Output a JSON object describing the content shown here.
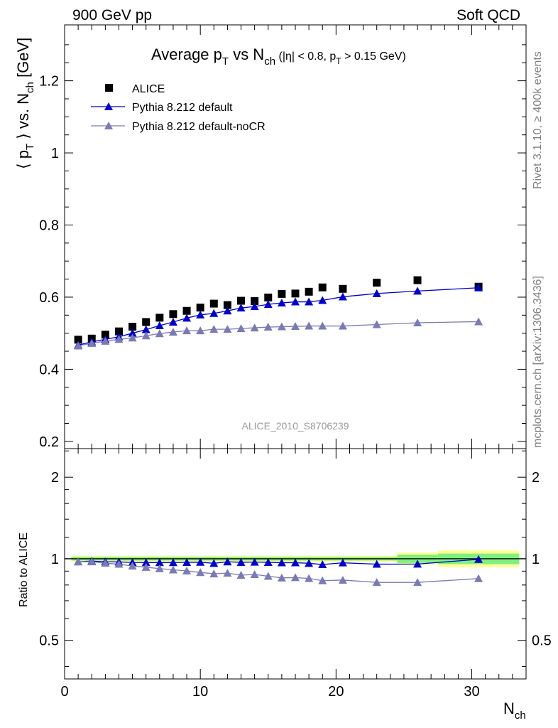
{
  "header": {
    "left": "900 GeV pp",
    "right": "Soft QCD"
  },
  "side_labels": {
    "rivet": "Rivet 3.1.10, ≥ 400k events",
    "mcplots": "mcplots.cern.ch [arXiv:1306.3436]"
  },
  "title": {
    "main_a": "Average p",
    "main_a_sub": "T",
    "main_b": " vs N",
    "main_b_sub": "ch",
    "small_a": " (|η| < 0.8, p",
    "small_sub": "T",
    "small_b": " > 0.15 GeV)"
  },
  "ylabel": {
    "part1": "⟨ p",
    "sub1": "T",
    "part2": " ⟩ vs. N",
    "sub2": "ch",
    "part3": " [GeV]"
  },
  "xlabel": {
    "main": "N",
    "sub": "ch"
  },
  "ratio_ylabel": "Ratio to ALICE",
  "analysis_id": "ALICE_2010_S8706239",
  "legend": [
    {
      "label": "ALICE",
      "color": "#000000",
      "marker": "square"
    },
    {
      "label": "Pythia 8.212 default",
      "color": "#0000cc",
      "marker": "triangle"
    },
    {
      "label": "Pythia 8.212 default-noCR",
      "color": "#7a7ab4",
      "marker": "triangle"
    }
  ],
  "chart_data": {
    "type": "scatter",
    "x": [
      1,
      2,
      3,
      4,
      5,
      6,
      7,
      8,
      9,
      10,
      11,
      12,
      13,
      14,
      15,
      16,
      17,
      18,
      19,
      20.5,
      23,
      26,
      30.5
    ],
    "xlim": [
      0,
      34
    ],
    "xticks": [
      0,
      10,
      20,
      30
    ],
    "ylim": [
      0.18,
      1.355
    ],
    "yticks": [
      0.2,
      0.4,
      0.6,
      0.8,
      1.0,
      1.2
    ],
    "ytick_labels": [
      "0.2",
      "0.4",
      "0.6",
      "0.8",
      "1",
      "1.2"
    ],
    "series": [
      {
        "name": "ALICE",
        "color": "#000000",
        "values": [
          0.482,
          0.485,
          0.496,
          0.505,
          0.518,
          0.531,
          0.543,
          0.553,
          0.562,
          0.571,
          0.582,
          0.578,
          0.59,
          0.589,
          0.599,
          0.609,
          0.61,
          0.615,
          0.627,
          0.623,
          0.64,
          0.647,
          0.629
        ]
      },
      {
        "name": "Pythia 8.212 default",
        "color": "#0000cc",
        "values": [
          0.467,
          0.476,
          0.483,
          0.49,
          0.5,
          0.51,
          0.521,
          0.531,
          0.542,
          0.551,
          0.555,
          0.562,
          0.57,
          0.574,
          0.58,
          0.584,
          0.587,
          0.587,
          0.591,
          0.601,
          0.61,
          0.617,
          0.626
        ]
      },
      {
        "name": "Pythia 8.212 default-noCR",
        "color": "#7a7ab4",
        "values": [
          0.465,
          0.472,
          0.478,
          0.483,
          0.487,
          0.493,
          0.499,
          0.503,
          0.507,
          0.507,
          0.511,
          0.511,
          0.513,
          0.515,
          0.517,
          0.518,
          0.519,
          0.52,
          0.52,
          0.52,
          0.524,
          0.529,
          0.532
        ]
      }
    ],
    "ratio": {
      "ylim": [
        0.36,
        2.55
      ],
      "ytick_labels": [
        "0.5",
        "1",
        "2"
      ],
      "yticks": [
        0.5,
        1,
        2
      ],
      "series": [
        {
          "name": "Pythia 8.212 default",
          "color": "#0000cc",
          "values": [
            0.975,
            0.98,
            0.975,
            0.973,
            0.969,
            0.968,
            0.968,
            0.968,
            0.97,
            0.971,
            0.962,
            0.974,
            0.97,
            0.972,
            0.97,
            0.967,
            0.967,
            0.962,
            0.952,
            0.966,
            0.955,
            0.956,
            0.995
          ]
        },
        {
          "name": "Pythia 8.212 default-noCR",
          "color": "#7a7ab4",
          "values": [
            0.975,
            0.975,
            0.963,
            0.955,
            0.94,
            0.93,
            0.92,
            0.91,
            0.902,
            0.89,
            0.88,
            0.885,
            0.87,
            0.875,
            0.862,
            0.85,
            0.852,
            0.846,
            0.83,
            0.834,
            0.818,
            0.818,
            0.845
          ]
        }
      ],
      "bands": [
        {
          "x_from": 0.5,
          "x_to": 24.5,
          "green_lo": 0.985,
          "green_hi": 1.015,
          "yellow_lo": 0.975,
          "yellow_hi": 1.025
        },
        {
          "x_from": 24.5,
          "x_to": 27.5,
          "green_lo": 0.965,
          "green_hi": 1.035,
          "yellow_lo": 0.95,
          "yellow_hi": 1.055
        },
        {
          "x_from": 27.5,
          "x_to": 33.5,
          "green_lo": 0.955,
          "green_hi": 1.045,
          "yellow_lo": 0.93,
          "yellow_hi": 1.075
        }
      ]
    }
  }
}
